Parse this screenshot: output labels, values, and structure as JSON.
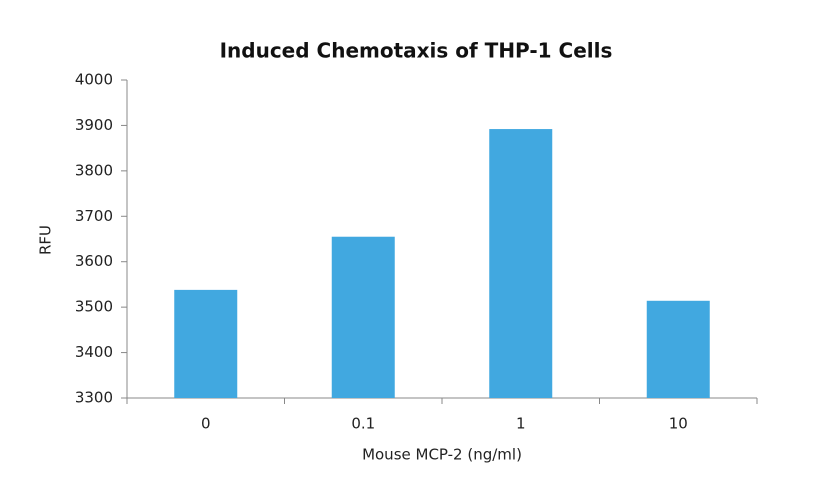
{
  "chart_data": {
    "type": "bar",
    "title": "Induced Chemotaxis of THP-1 Cells",
    "x_label": "Mouse MCP-2 (ng/ml)",
    "y_label": "RFU",
    "categories": [
      "0",
      "0.1",
      "1",
      "10"
    ],
    "values": [
      3538,
      3655,
      3892,
      3514
    ],
    "color": "#41a8e0",
    "ylim": [
      3300,
      4000
    ],
    "yticks": [
      3300,
      3400,
      3500,
      3600,
      3700,
      3800,
      3900,
      4000
    ],
    "grid": false
  }
}
